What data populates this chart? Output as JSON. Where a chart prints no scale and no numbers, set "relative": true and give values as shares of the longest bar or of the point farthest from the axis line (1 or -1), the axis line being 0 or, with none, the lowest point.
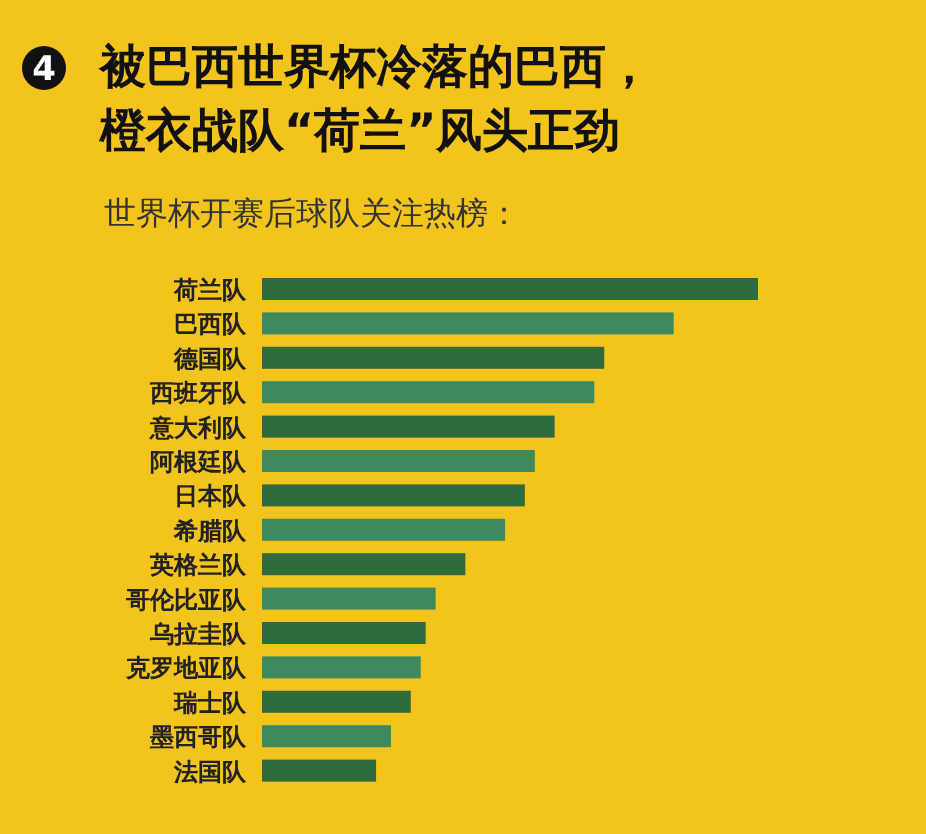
{
  "chart_data": {
    "type": "bar",
    "orientation": "horizontal",
    "relative": true,
    "title": "被巴西世界杯冷落的巴西，橙衣战队“荷兰”风头正劲",
    "subtitle": "世界杯开赛后球队关注热榜：",
    "annotations": [
      "4"
    ],
    "categories": [
      "荷兰队",
      "巴西队",
      "德国队",
      "西班牙队",
      "意大利队",
      "阿根廷队",
      "日本队",
      "希腊队",
      "英格兰队",
      "哥伦比亚队",
      "乌拉圭队",
      "克罗地亚队",
      "瑞士队",
      "墨西哥队",
      "法国队"
    ],
    "values": [
      1,
      0.83,
      0.69,
      0.67,
      0.59,
      0.55,
      0.53,
      0.49,
      0.41,
      0.35,
      0.33,
      0.32,
      0.3,
      0.26,
      0.23
    ],
    "colors": [
      "#2f6b3c",
      "#3e8a5e",
      "#2f6b3c",
      "#3e8a5e",
      "#2f6b3c",
      "#3e8a5e",
      "#2f6b3c",
      "#3e8a5e",
      "#2f6b3c",
      "#3e8a5e",
      "#2f6b3c",
      "#3e8a5e",
      "#2f6b3c",
      "#3e8a5e",
      "#2f6b3c"
    ]
  }
}
